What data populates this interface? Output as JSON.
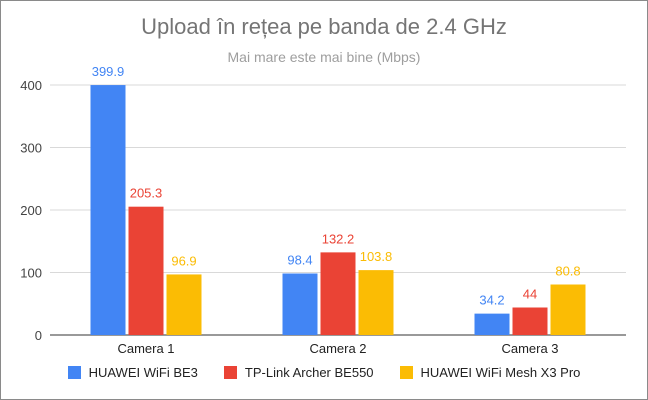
{
  "chart_data": {
    "type": "bar",
    "title": "Upload în rețea pe banda de 2.4 GHz",
    "subtitle": "Mai mare este mai bine (Mbps)",
    "categories": [
      "Camera 1",
      "Camera 2",
      "Camera 3"
    ],
    "series": [
      {
        "name": "HUAWEI WiFi BE3",
        "color": "#4285f4",
        "values": [
          399.9,
          98.4,
          34.2
        ],
        "labels": [
          "399.9",
          "98.4",
          "34.2"
        ]
      },
      {
        "name": "TP-Link Archer BE550",
        "color": "#ea4335",
        "values": [
          205.3,
          132.2,
          44
        ],
        "labels": [
          "205.3",
          "132.2",
          "44"
        ]
      },
      {
        "name": "HUAWEI WiFi Mesh X3 Pro",
        "color": "#fbbc04",
        "values": [
          96.9,
          103.8,
          80.8
        ],
        "labels": [
          "96.9",
          "103.8",
          "80.8"
        ]
      }
    ],
    "ylim": [
      0,
      400
    ],
    "yticks": [
      0,
      100,
      200,
      300,
      400
    ],
    "grid": true,
    "legend_position": "bottom"
  }
}
